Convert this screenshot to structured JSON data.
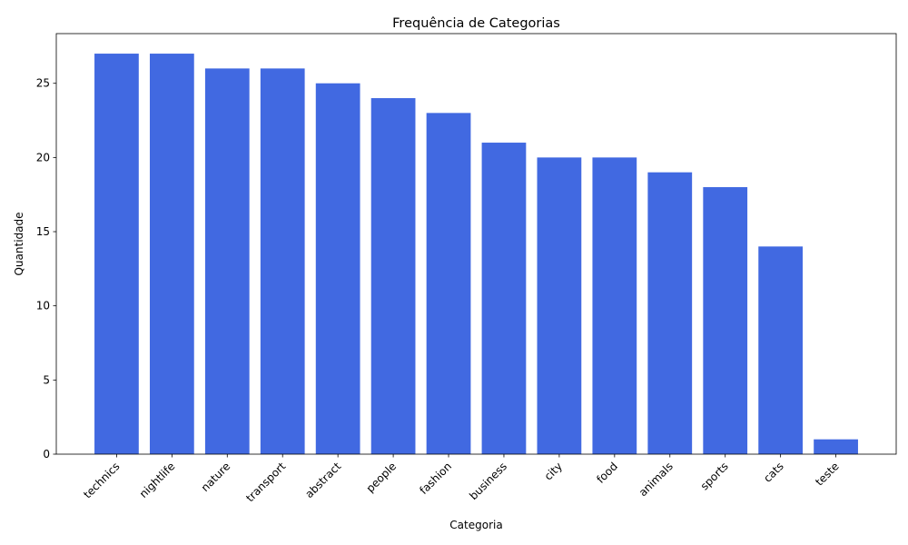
{
  "chart_data": {
    "type": "bar",
    "title": "Frequência de Categorias",
    "xlabel": "Categoria",
    "ylabel": "Quantidade",
    "categories": [
      "technics",
      "nightlife",
      "nature",
      "transport",
      "abstract",
      "people",
      "fashion",
      "business",
      "city",
      "food",
      "animals",
      "sports",
      "cats",
      "teste"
    ],
    "values": [
      27,
      27,
      26,
      26,
      25,
      24,
      23,
      21,
      20,
      20,
      19,
      18,
      14,
      1
    ],
    "ylim": [
      0,
      28.35
    ],
    "yticks": [
      0,
      5,
      10,
      15,
      20,
      25
    ],
    "bar_color": "#4169e1",
    "grid": false,
    "legend": "none"
  }
}
